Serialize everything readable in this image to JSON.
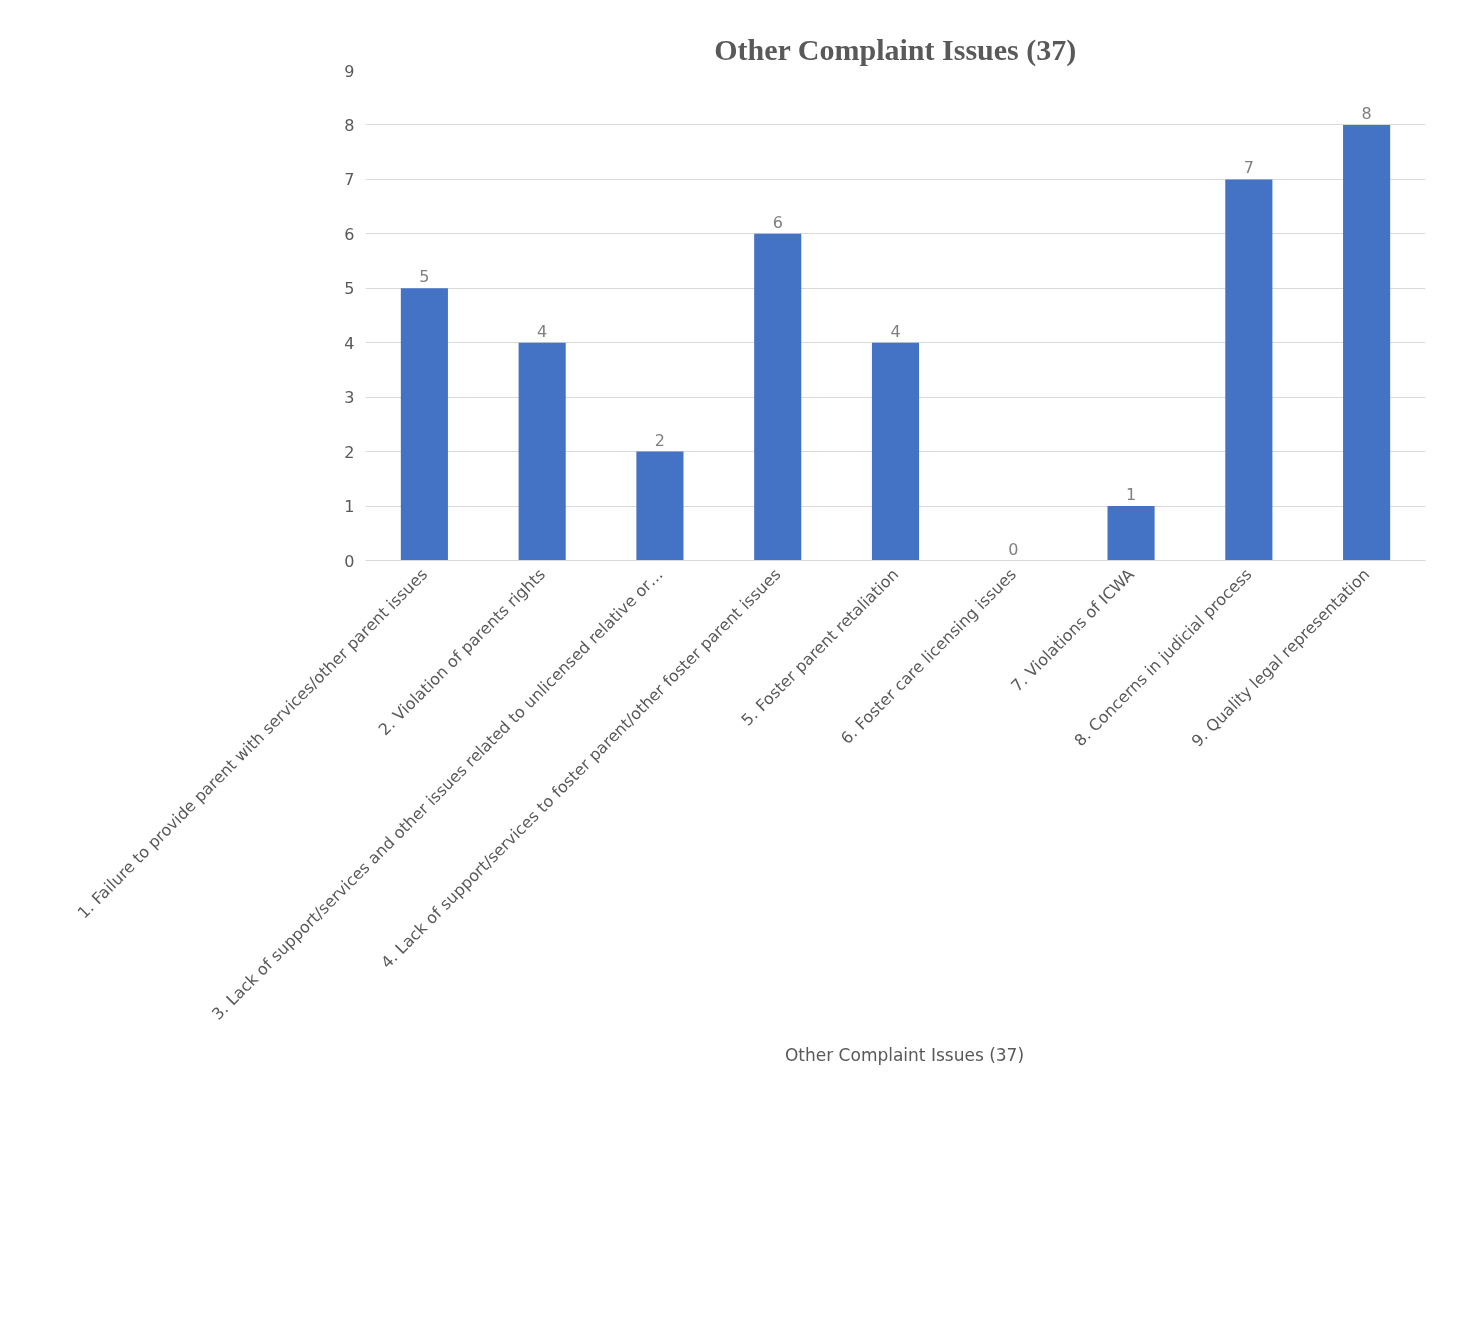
{
  "chart_data": {
    "type": "bar",
    "title": "Other Complaint Issues (37)",
    "categories": [
      "1. Failure to provide parent with services/other parent issues",
      "2. Violation of parents rights",
      "3. Lack of support/services and other issues related to unlicensed relative or…",
      "4. Lack of support/services to foster parent/other foster parent issues",
      "5. Foster parent retaliation",
      "6. Foster care licensing issues",
      "7. Violations of ICWA",
      "8. Concerns in judicial process",
      "9. Quality legal representation"
    ],
    "series": [
      {
        "name": "Other Complaint Issues (37)",
        "color": "#4472c4",
        "values": [
          5,
          4,
          2,
          6,
          4,
          0,
          1,
          7,
          8
        ]
      }
    ],
    "ylim": [
      0,
      9
    ],
    "yticks": [
      0,
      1,
      2,
      3,
      4,
      5,
      6,
      7,
      8,
      9
    ],
    "grid": "y",
    "legend": "bottom",
    "data_labels": true
  }
}
